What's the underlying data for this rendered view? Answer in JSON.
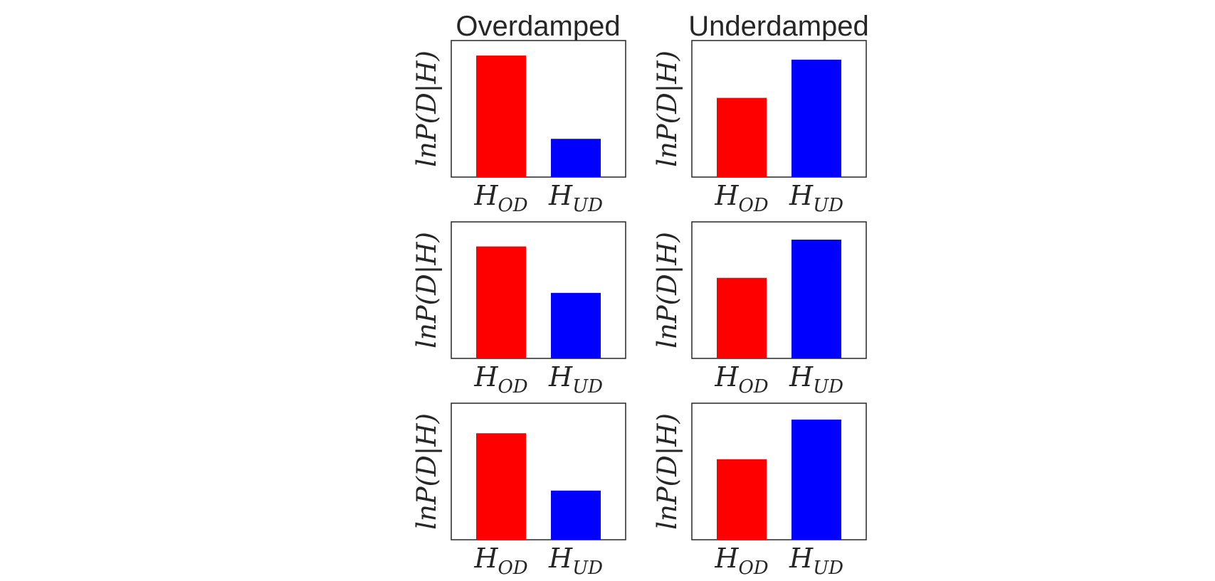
{
  "column_titles": [
    "Overdamped",
    "Underdamped"
  ],
  "colors": {
    "red": "#ff0000",
    "blue": "#0000ff"
  },
  "chart_data": [
    {
      "type": "bar",
      "title": "Overdamped",
      "ylabel": "lnP(D|H)",
      "categories": [
        "H_OD",
        "H_UD"
      ],
      "values": [
        0.89,
        0.28
      ],
      "ylim": [
        0,
        1
      ]
    },
    {
      "type": "bar",
      "title": "Underdamped",
      "ylabel": "lnP(D|H)",
      "categories": [
        "H_OD",
        "H_UD"
      ],
      "values": [
        0.58,
        0.86
      ],
      "ylim": [
        0,
        1
      ]
    },
    {
      "type": "bar",
      "title": "",
      "ylabel": "lnP(D|H)",
      "categories": [
        "H_OD",
        "H_UD"
      ],
      "values": [
        0.82,
        0.48
      ],
      "ylim": [
        0,
        1
      ]
    },
    {
      "type": "bar",
      "title": "",
      "ylabel": "lnP(D|H)",
      "categories": [
        "H_OD",
        "H_UD"
      ],
      "values": [
        0.59,
        0.87
      ],
      "ylim": [
        0,
        1
      ]
    },
    {
      "type": "bar",
      "title": "",
      "ylabel": "lnP(D|H)",
      "categories": [
        "H_OD",
        "H_UD"
      ],
      "values": [
        0.78,
        0.36
      ],
      "ylim": [
        0,
        1
      ]
    },
    {
      "type": "bar",
      "title": "",
      "ylabel": "lnP(D|H)",
      "categories": [
        "H_OD",
        "H_UD"
      ],
      "values": [
        0.59,
        0.88
      ],
      "ylim": [
        0,
        1
      ]
    }
  ]
}
